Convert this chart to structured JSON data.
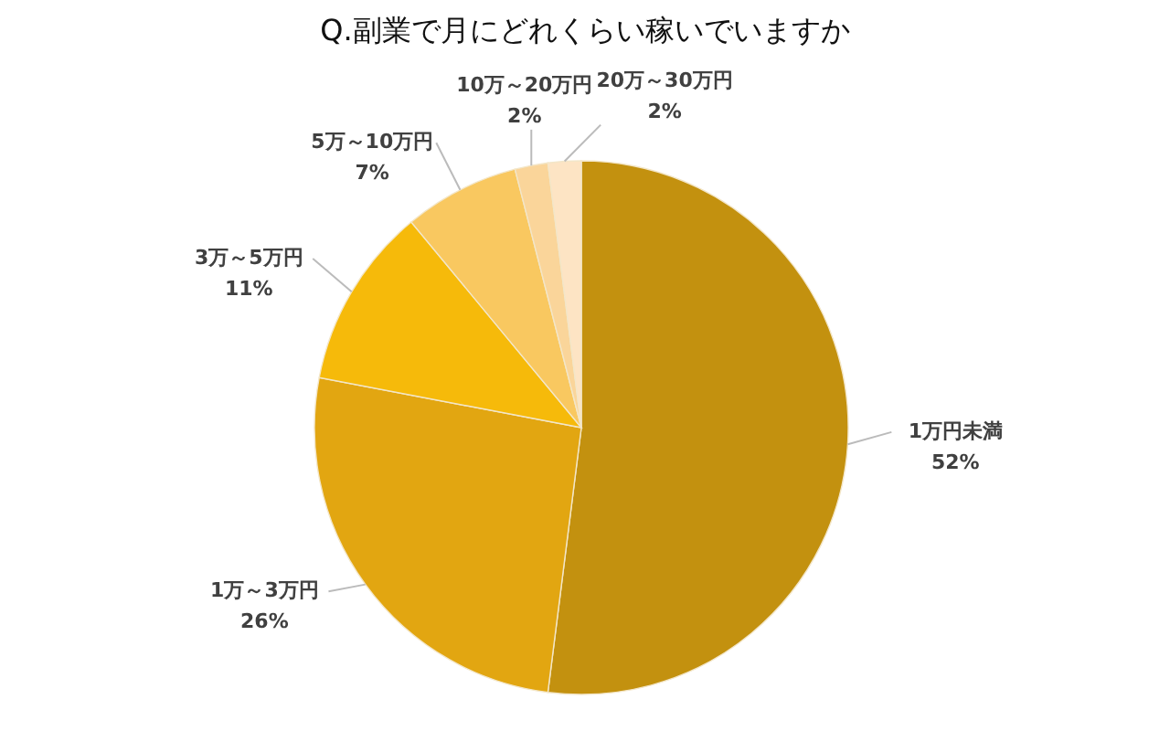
{
  "chart_data": {
    "type": "pie",
    "title": "Q.副業で月にどれくらい稼いでいますか",
    "categories": [
      "1万円未満",
      "1万～3万円",
      "3万～5万円",
      "5万～10万円",
      "10万～20万円",
      "20万～30万円"
    ],
    "values": [
      52,
      26,
      11,
      7,
      2,
      2
    ],
    "colors": [
      "#c3910f",
      "#e2a611",
      "#f6ba0a",
      "#f9c860",
      "#fad59a",
      "#fde4c4"
    ],
    "value_labels": [
      "52%",
      "26%",
      "11%",
      "7%",
      "2%",
      "2%"
    ]
  }
}
